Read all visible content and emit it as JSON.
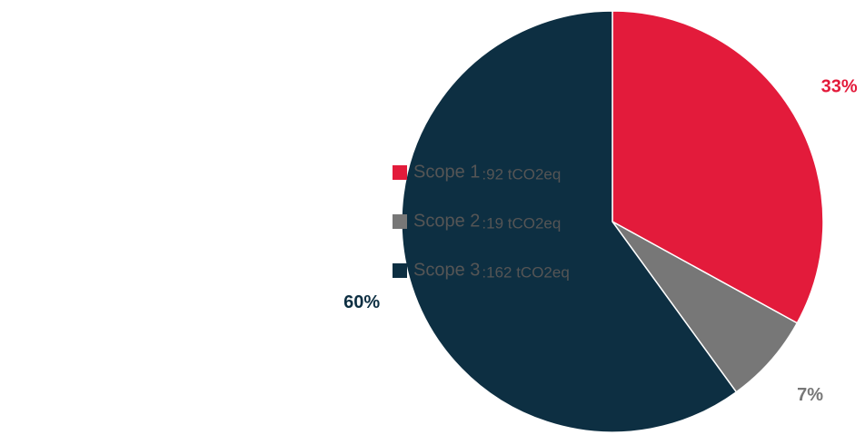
{
  "chart_data": {
    "type": "pie",
    "series": [
      {
        "name": "Scope 1",
        "color": "#e31b3b",
        "detail": ":92 tCO2eq"
      },
      {
        "name": "Scope 2",
        "color": "#777777",
        "detail": ":19 tCO2eq"
      },
      {
        "name": "Scope 3",
        "color": "#0d2f42",
        "detail": ":162 tCO2eq"
      }
    ],
    "values": [
      33,
      7,
      60
    ],
    "value_labels": [
      "33%",
      "7%",
      "60%"
    ],
    "legend": "left"
  }
}
